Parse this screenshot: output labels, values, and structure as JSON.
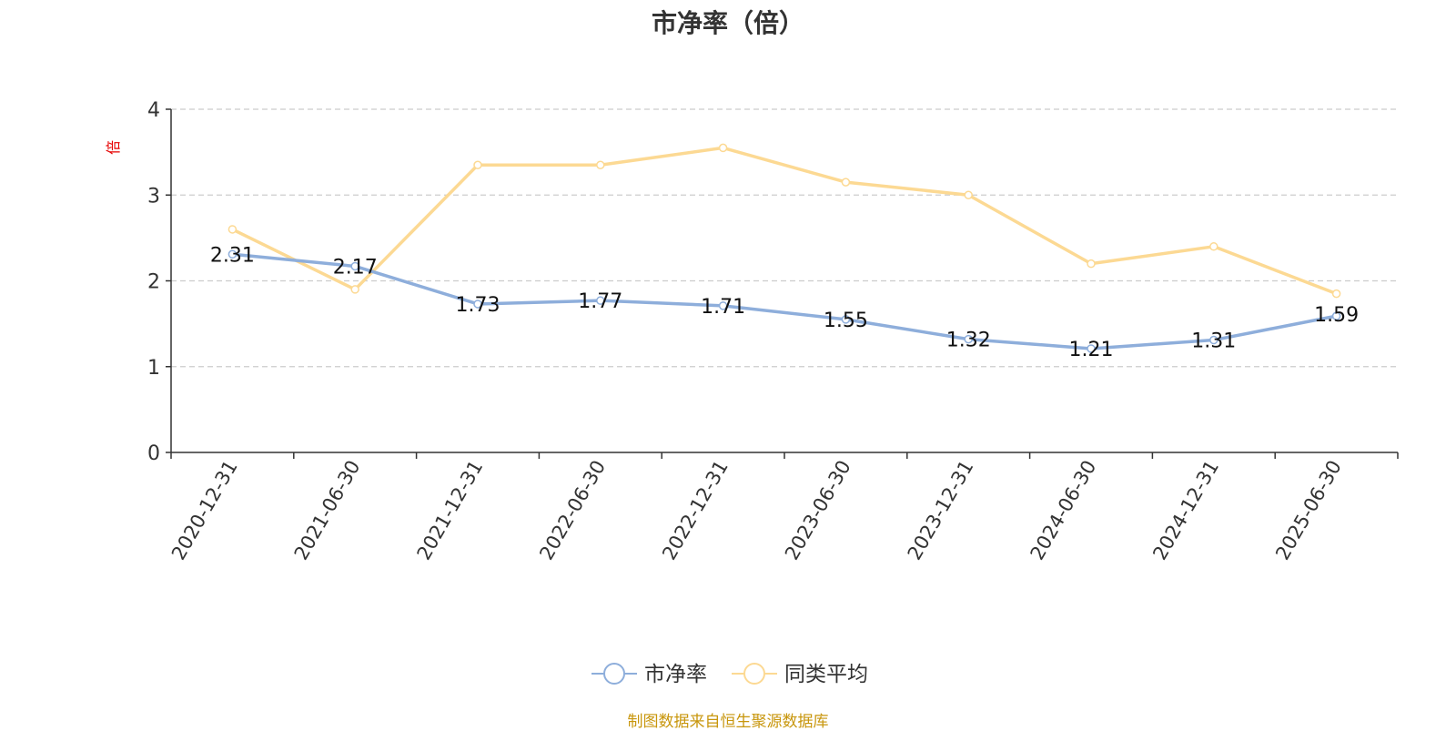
{
  "chart_data": {
    "type": "line",
    "title": "市净率（倍）",
    "ylabel": "倍",
    "xlabel": "",
    "ylim": [
      0,
      4
    ],
    "yticks": [
      "0",
      "1",
      "2",
      "3",
      "4"
    ],
    "grid": true,
    "legend_position": "bottom",
    "categories": [
      "2020-12-31",
      "2021-06-30",
      "2021-12-31",
      "2022-06-30",
      "2022-12-31",
      "2023-06-30",
      "2023-12-31",
      "2024-06-30",
      "2024-12-31",
      "2025-06-30"
    ],
    "series": [
      {
        "name": "市净率",
        "values": [
          2.31,
          2.17,
          1.73,
          1.77,
          1.71,
          1.55,
          1.32,
          1.21,
          1.31,
          1.59
        ],
        "labels": [
          "2.31",
          "2.17",
          "1.73",
          "1.77",
          "1.71",
          "1.55",
          "1.32",
          "1.21",
          "1.31",
          "1.59"
        ],
        "color": "#8eaedb"
      },
      {
        "name": "同类平均",
        "values": [
          2.6,
          1.9,
          3.35,
          3.35,
          3.55,
          3.15,
          3.0,
          2.2,
          2.4,
          1.85
        ],
        "color": "#fcd993"
      }
    ]
  },
  "footer": "制图数据来自恒生聚源数据库",
  "colors": {
    "axis": "#333333",
    "grid": "#cccccc",
    "ylabel": "#e60000",
    "footer": "#c8960c",
    "label_text": "#111111"
  }
}
